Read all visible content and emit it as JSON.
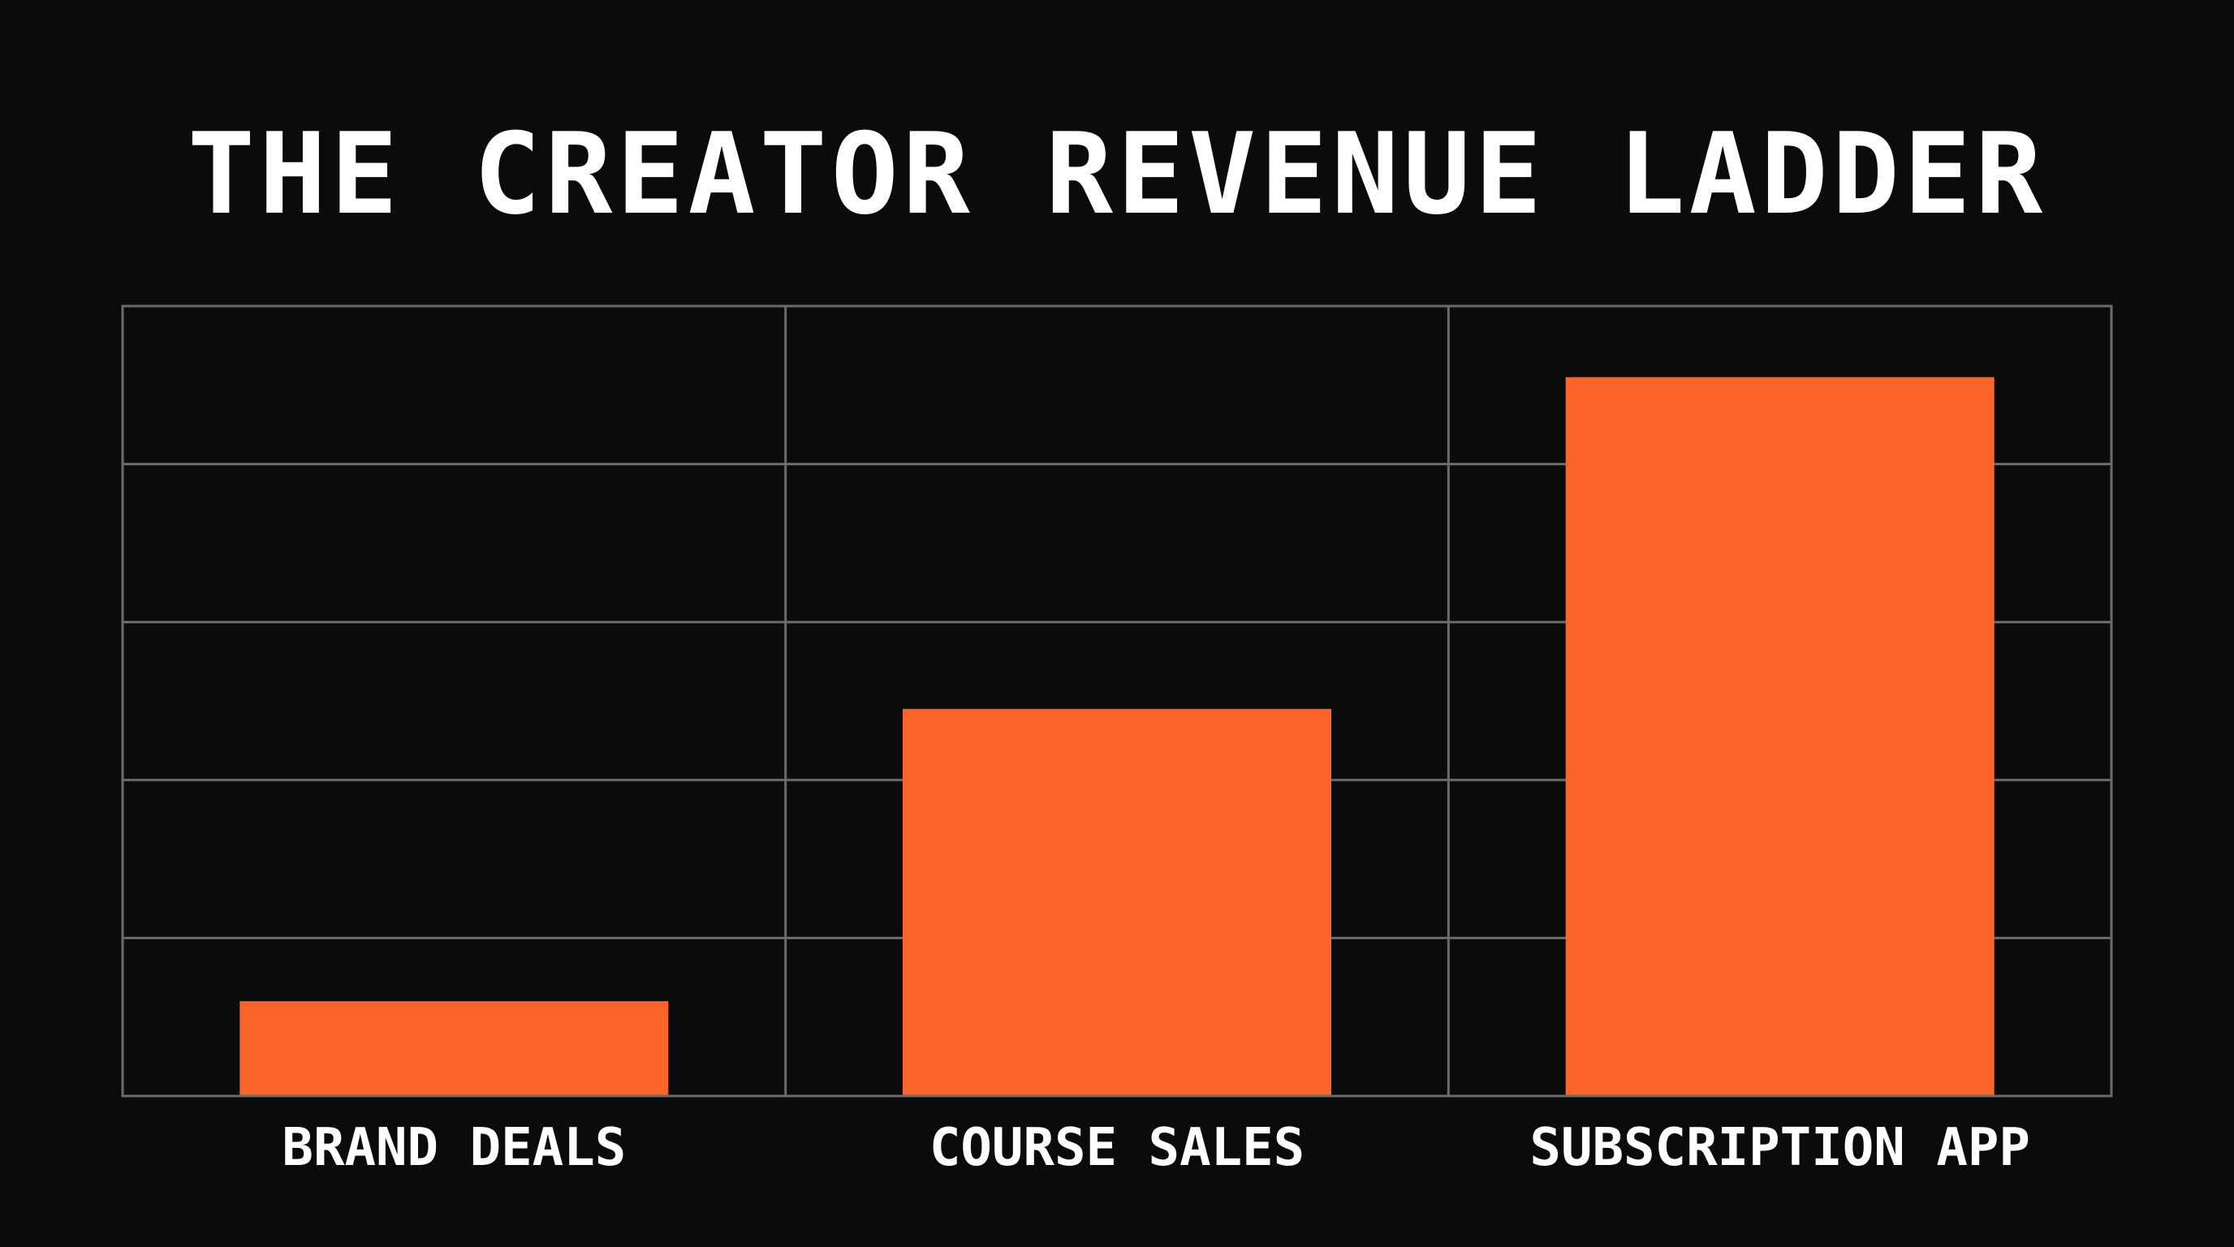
{
  "chart_data": {
    "type": "bar",
    "title": "THE CREATOR REVENUE LADDER",
    "categories": [
      "BRAND DEALS",
      "COURSE SALES",
      "SUBSCRIPTION APP"
    ],
    "values": [
      1.2,
      4.9,
      9.1
    ],
    "ylim": [
      0,
      10
    ],
    "grid": true,
    "legend": "none",
    "colors": {
      "background": "#0a0b0b",
      "bar": "#fd6429",
      "grid": "#6b6b6b",
      "text": "#ffffff"
    }
  }
}
